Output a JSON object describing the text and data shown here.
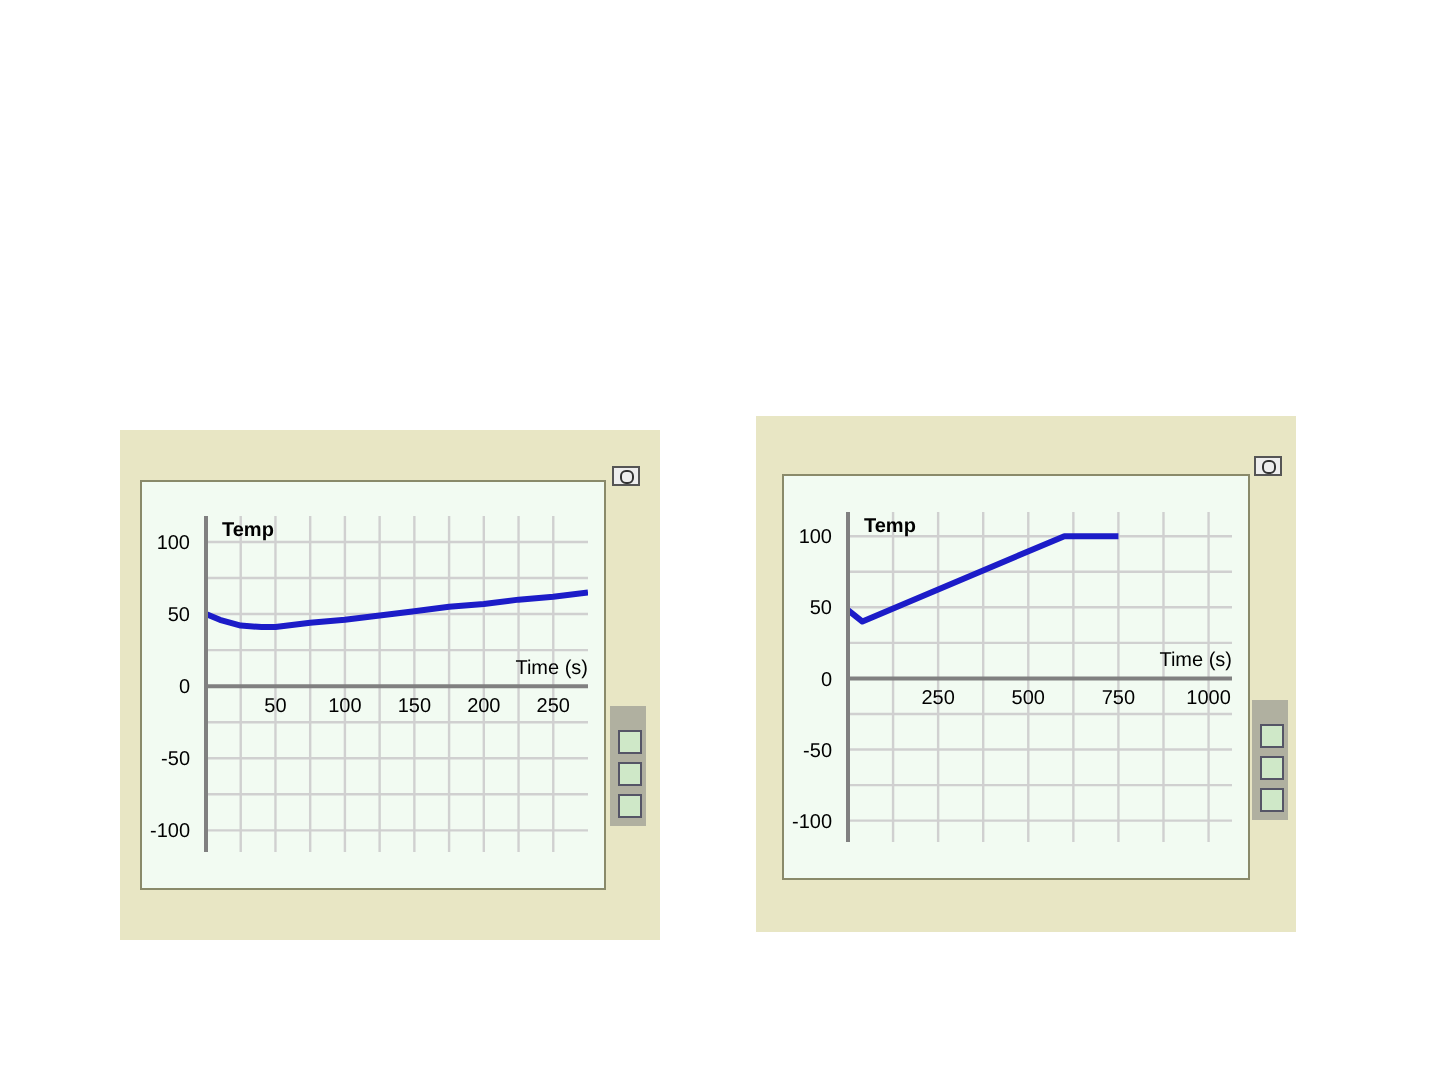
{
  "chart_data": [
    {
      "type": "line",
      "xlabel": "Time (s)",
      "ylabel": "Temp",
      "grid": true,
      "xlim": [
        0,
        275
      ],
      "ylim": [
        -115,
        118
      ],
      "xticks": [
        {
          "value": 25,
          "label": null
        },
        50,
        {
          "value": 75,
          "label": null
        },
        100,
        {
          "value": 125,
          "label": null
        },
        150,
        {
          "value": 175,
          "label": null
        },
        200,
        {
          "value": 225,
          "label": null
        },
        250
      ],
      "yticks": [
        -100,
        {
          "value": -75,
          "label": null
        },
        -50,
        {
          "value": -25,
          "label": null
        },
        0,
        {
          "value": 25,
          "label": null
        },
        50,
        {
          "value": 75,
          "label": null
        },
        100
      ],
      "series": [
        {
          "color": "#1c1cc8",
          "x": [
            0,
            10,
            25,
            40,
            50,
            75,
            100,
            125,
            150,
            175,
            200,
            225,
            250,
            275
          ],
          "values": [
            50,
            46,
            42,
            41,
            41,
            44,
            46,
            49,
            52,
            55,
            57,
            60,
            62,
            65
          ]
        }
      ]
    },
    {
      "type": "line",
      "xlabel": "Time (s)",
      "ylabel": "Temp",
      "grid": true,
      "xlim": [
        0,
        1065
      ],
      "ylim": [
        -115,
        117
      ],
      "xticks": [
        {
          "value": 125,
          "label": null
        },
        250,
        {
          "value": 375,
          "label": null
        },
        500,
        {
          "value": 625,
          "label": null
        },
        750,
        {
          "value": 875,
          "label": null
        },
        1000
      ],
      "yticks": [
        -100,
        {
          "value": -75,
          "label": null
        },
        -50,
        {
          "value": -25,
          "label": null
        },
        0,
        {
          "value": 25,
          "label": null
        },
        50,
        {
          "value": 75,
          "label": null
        },
        100
      ],
      "series": [
        {
          "color": "#1c1cc8",
          "x": [
            0,
            40,
            600,
            750
          ],
          "values": [
            48,
            40,
            100,
            100
          ]
        }
      ]
    }
  ]
}
